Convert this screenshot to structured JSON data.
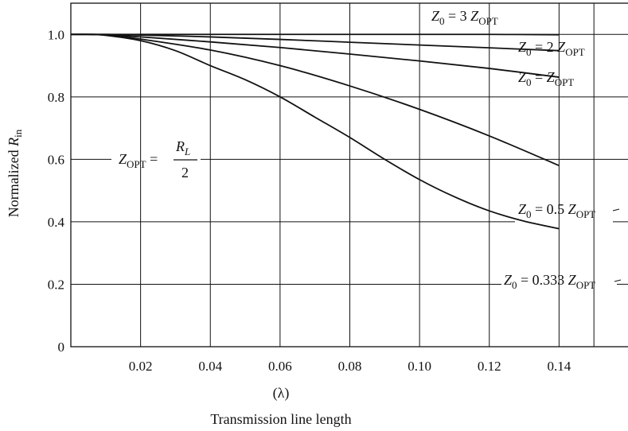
{
  "chart_data": {
    "type": "line",
    "title": "",
    "xlabel": "Transmission line length",
    "xunit": "(λ)",
    "ylabel_main": "Normalized ",
    "ylabel_italic": "R",
    "ylabel_sub": "in",
    "xlim": [
      0,
      0.16
    ],
    "ylim": [
      0,
      1.1
    ],
    "grid": true,
    "x_ticks": [
      {
        "value": 0.02,
        "label": "0.02"
      },
      {
        "value": 0.04,
        "label": "0.04"
      },
      {
        "value": 0.06,
        "label": "0.06"
      },
      {
        "value": 0.08,
        "label": "0.08"
      },
      {
        "value": 0.1,
        "label": "0.10"
      },
      {
        "value": 0.12,
        "label": "0.12"
      },
      {
        "value": 0.14,
        "label": "0.14"
      }
    ],
    "y_ticks": [
      {
        "value": 0,
        "label": "0"
      },
      {
        "value": 0.2,
        "label": "0.2"
      },
      {
        "value": 0.4,
        "label": "0.4"
      },
      {
        "value": 0.6,
        "label": "0.6"
      },
      {
        "value": 0.8,
        "label": "0.8"
      },
      {
        "value": 1.0,
        "label": "1.0"
      }
    ],
    "series": [
      {
        "name": "Z0 = 3 ZOPT",
        "x": [
          0,
          0.005,
          0.01,
          0.02,
          0.04,
          0.06,
          0.08,
          0.1,
          0.12,
          0.14
        ],
        "y": [
          1.0,
          1.0,
          1.0,
          1.0,
          1.0,
          1.0,
          1.0,
          1.0,
          1.0,
          0.999
        ]
      },
      {
        "name": "Z0 = 2 ZOPT",
        "x": [
          0,
          0.005,
          0.01,
          0.02,
          0.04,
          0.06,
          0.08,
          0.1,
          0.12,
          0.14
        ],
        "y": [
          1.0,
          1.0,
          1.0,
          0.998,
          0.992,
          0.984,
          0.975,
          0.966,
          0.957,
          0.948
        ]
      },
      {
        "name": "Z0 = ZOPT",
        "x": [
          0,
          0.005,
          0.01,
          0.02,
          0.04,
          0.06,
          0.08,
          0.1,
          0.12,
          0.14
        ],
        "y": [
          1.0,
          1.0,
          0.999,
          0.992,
          0.976,
          0.958,
          0.937,
          0.915,
          0.891,
          0.863
        ]
      },
      {
        "name": "Z0 = 0.5 ZOPT",
        "x": [
          0,
          0.005,
          0.01,
          0.02,
          0.04,
          0.06,
          0.08,
          0.1,
          0.12,
          0.14
        ],
        "y": [
          1.0,
          1.0,
          0.998,
          0.985,
          0.95,
          0.9,
          0.835,
          0.76,
          0.675,
          0.58
        ]
      },
      {
        "name": "Z0 = 0.333 ZOPT",
        "x": [
          0,
          0.005,
          0.01,
          0.02,
          0.03,
          0.04,
          0.05,
          0.06,
          0.07,
          0.08,
          0.09,
          0.1,
          0.11,
          0.12,
          0.13,
          0.14
        ],
        "y": [
          1.0,
          1.0,
          0.997,
          0.98,
          0.948,
          0.9,
          0.855,
          0.8,
          0.735,
          0.67,
          0.6,
          0.535,
          0.48,
          0.435,
          0.402,
          0.378
        ]
      }
    ],
    "annotations": [
      {
        "pre": "Z",
        "pre_sub": "0",
        "mid": " = 3 ",
        "z": "Z",
        "z_sub": "OPT"
      },
      {
        "pre": "Z",
        "pre_sub": "0",
        "mid": " = 2 ",
        "z": "Z",
        "z_sub": "OPT"
      },
      {
        "pre": "Z",
        "pre_sub": "0",
        "mid": " = ",
        "z": "Z",
        "z_sub": "OPT"
      },
      {
        "pre": "Z",
        "pre_sub": "0",
        "mid": " = 0.5 ",
        "z": "Z",
        "z_sub": "OPT"
      },
      {
        "pre": "Z",
        "pre_sub": "0",
        "mid": " = 0.333 ",
        "z": "Z",
        "z_sub": "OPT"
      }
    ],
    "formula": {
      "lhs": "Z",
      "lhs_sub": "OPT",
      "eq": " = ",
      "num": "R",
      "num_sub": "L",
      "den": "2"
    }
  }
}
